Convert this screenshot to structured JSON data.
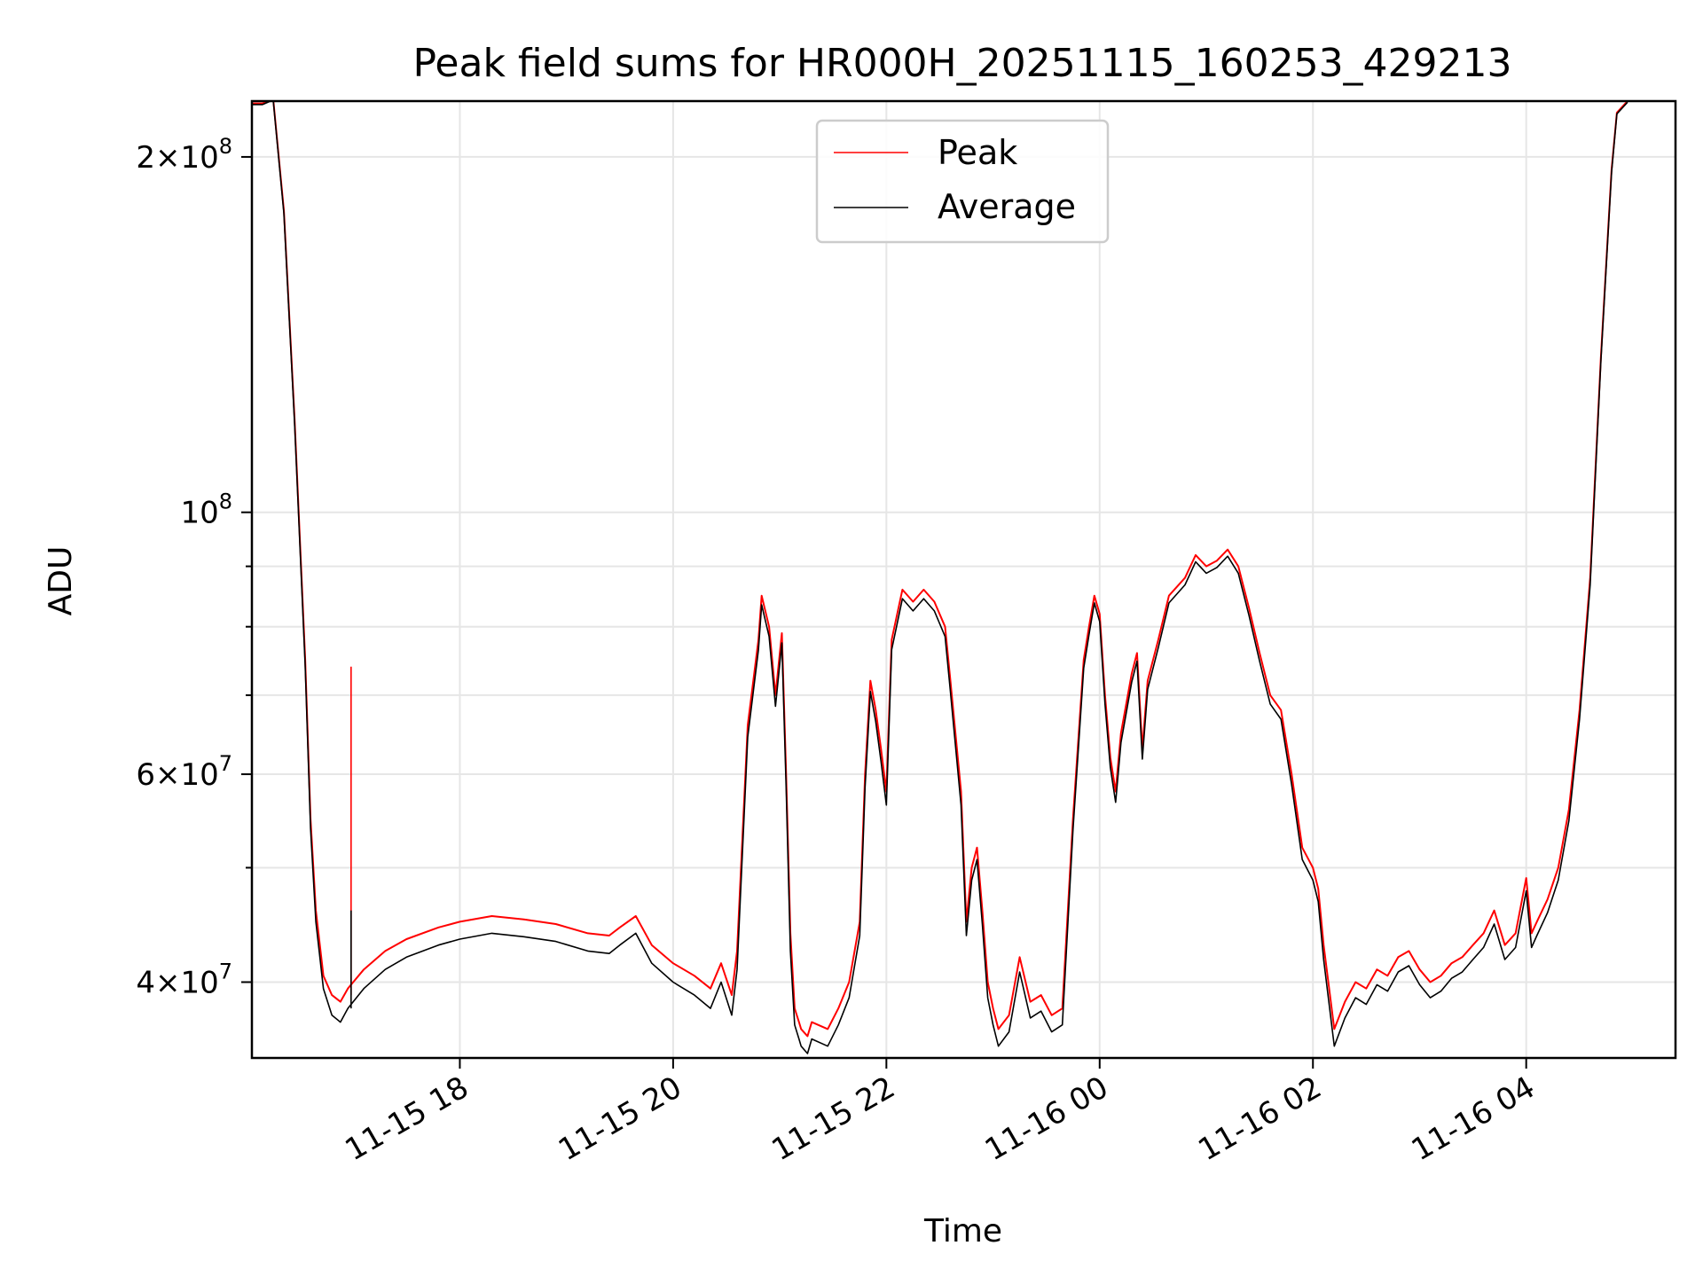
{
  "chart_data": {
    "type": "line",
    "title": "Peak field sums for HR000H_20251115_160253_429213",
    "xlabel": "Time",
    "ylabel": "ADU",
    "yscale": "log",
    "ylim": [
      34500000,
      223000000
    ],
    "xlim_hours": [
      16.05,
      29.4
    ],
    "grid": true,
    "legend_position": "top-center",
    "x_ticks": [
      {
        "hour": 18,
        "label": "11-15 18"
      },
      {
        "hour": 20,
        "label": "11-15 20"
      },
      {
        "hour": 22,
        "label": "11-15 22"
      },
      {
        "hour": 24,
        "label": "11-16 00"
      },
      {
        "hour": 26,
        "label": "11-16 02"
      },
      {
        "hour": 28,
        "label": "11-16 04"
      }
    ],
    "y_ticks": [
      {
        "value": 40000000,
        "mantissa": "4",
        "exponent": "7"
      },
      {
        "value": 60000000,
        "mantissa": "6",
        "exponent": "7"
      },
      {
        "value": 100000000,
        "mantissa": "",
        "exponent": "8"
      },
      {
        "value": 200000000,
        "mantissa": "2",
        "exponent": "8"
      }
    ],
    "y_minor_ticks": [
      50000000,
      70000000,
      80000000,
      90000000
    ],
    "x_hours": [
      16.05,
      16.15,
      16.25,
      16.35,
      16.45,
      16.55,
      16.6,
      16.65,
      16.72,
      16.8,
      16.88,
      16.95,
      17.0,
      17.1,
      17.3,
      17.5,
      17.8,
      18.0,
      18.3,
      18.6,
      18.9,
      19.2,
      19.4,
      19.5,
      19.65,
      19.8,
      20.0,
      20.2,
      20.35,
      20.45,
      20.55,
      20.6,
      20.7,
      20.8,
      20.83,
      20.9,
      20.96,
      21.02,
      21.06,
      21.1,
      21.14,
      21.18,
      21.2,
      21.26,
      21.3,
      21.45,
      21.55,
      21.65,
      21.75,
      21.8,
      21.85,
      21.9,
      21.95,
      22.0,
      22.05,
      22.15,
      22.25,
      22.35,
      22.45,
      22.55,
      22.6,
      22.7,
      22.75,
      22.8,
      22.85,
      22.9,
      22.95,
      23.0,
      23.05,
      23.15,
      23.25,
      23.35,
      23.45,
      23.55,
      23.65,
      23.75,
      23.85,
      23.9,
      23.95,
      24.0,
      24.05,
      24.1,
      24.15,
      24.2,
      24.3,
      24.35,
      24.4,
      24.45,
      24.55,
      24.65,
      24.8,
      24.9,
      25.0,
      25.1,
      25.2,
      25.3,
      25.4,
      25.5,
      25.6,
      25.7,
      25.8,
      25.9,
      26.0,
      26.05,
      26.1,
      26.2,
      26.3,
      26.4,
      26.5,
      26.6,
      26.7,
      26.8,
      26.9,
      27.0,
      27.1,
      27.2,
      27.3,
      27.4,
      27.5,
      27.6,
      27.7,
      27.8,
      27.9,
      28.0,
      28.05,
      28.1,
      28.2,
      28.3,
      28.4,
      28.5,
      28.6,
      28.7,
      28.8,
      28.85,
      28.95,
      29.05,
      29.15,
      29.25,
      29.4
    ],
    "series": [
      {
        "name": "Peak",
        "color": "#ff0000",
        "values": [
          222000000,
          222000000,
          224000000,
          180000000,
          120000000,
          75000000,
          55000000,
          46000000,
          40500000,
          39000000,
          38500000,
          39500000,
          40000000,
          41000000,
          42500000,
          43500000,
          44500000,
          45000000,
          45500000,
          45200000,
          44800000,
          44000000,
          43800000,
          44500000,
          45500000,
          43000000,
          41500000,
          40500000,
          39500000,
          41500000,
          39000000,
          42500000,
          66000000,
          78000000,
          85000000,
          80000000,
          70000000,
          79000000,
          60000000,
          44000000,
          38000000,
          37000000,
          36500000,
          36000000,
          37000000,
          36500000,
          38000000,
          40000000,
          45000000,
          60000000,
          72000000,
          68000000,
          63000000,
          58000000,
          78000000,
          86000000,
          84000000,
          86000000,
          84000000,
          80000000,
          72000000,
          58000000,
          45000000,
          50000000,
          52000000,
          46000000,
          40000000,
          38000000,
          36500000,
          37500000,
          42000000,
          38500000,
          39000000,
          37500000,
          38000000,
          55000000,
          75000000,
          80000000,
          85000000,
          82000000,
          70000000,
          62000000,
          58000000,
          65000000,
          73000000,
          76000000,
          63000000,
          72000000,
          78000000,
          85000000,
          88000000,
          92000000,
          90000000,
          91000000,
          93000000,
          90000000,
          83000000,
          76000000,
          70000000,
          68000000,
          60000000,
          52000000,
          50000000,
          48000000,
          43000000,
          36500000,
          38500000,
          40000000,
          39500000,
          41000000,
          40500000,
          42000000,
          42500000,
          41000000,
          40000000,
          40500000,
          41500000,
          42000000,
          43000000,
          44000000,
          46000000,
          43000000,
          44000000,
          49000000,
          44000000,
          45000000,
          47000000,
          50000000,
          56000000,
          68000000,
          88000000,
          135000000,
          195000000,
          218000000,
          223000000
        ]
      },
      {
        "name": "Average",
        "color": "#000000",
        "values": [
          221500000,
          221500000,
          223500000,
          179000000,
          119000000,
          74000000,
          54000000,
          45000000,
          39500000,
          37500000,
          37000000,
          38000000,
          38500000,
          39500000,
          41000000,
          42000000,
          43000000,
          43500000,
          44000000,
          43700000,
          43300000,
          42500000,
          42300000,
          43000000,
          44000000,
          41500000,
          40000000,
          39000000,
          38000000,
          40000000,
          37500000,
          41000000,
          64500000,
          76500000,
          83500000,
          78500000,
          68500000,
          77500000,
          58500000,
          42500000,
          36800000,
          35800000,
          35300000,
          34800000,
          35800000,
          35300000,
          36800000,
          38800000,
          43800000,
          58500000,
          70500000,
          66500000,
          61500000,
          56500000,
          76500000,
          84500000,
          82500000,
          84500000,
          82500000,
          78500000,
          70500000,
          56500000,
          43800000,
          48800000,
          50800000,
          44800000,
          38800000,
          36800000,
          35300000,
          36300000,
          40800000,
          37300000,
          37800000,
          36300000,
          36800000,
          53800000,
          73800000,
          78800000,
          83800000,
          80800000,
          68800000,
          60800000,
          56800000,
          63800000,
          71800000,
          74800000,
          61800000,
          70800000,
          76800000,
          83800000,
          86800000,
          90800000,
          88800000,
          89800000,
          91800000,
          88800000,
          81800000,
          74800000,
          68800000,
          66800000,
          58800000,
          50800000,
          48800000,
          46800000,
          41800000,
          35300000,
          37300000,
          38800000,
          38300000,
          39800000,
          39300000,
          40800000,
          41300000,
          39800000,
          38800000,
          39300000,
          40300000,
          40800000,
          41800000,
          42800000,
          44800000,
          41800000,
          42800000,
          47800000,
          42800000,
          43800000,
          45800000,
          48800000,
          54800000,
          66800000,
          86800000,
          134000000,
          194000000,
          217500000,
          222500000
        ]
      }
    ],
    "annotations": [
      {
        "hour": 16.98,
        "peak_value": 74000000,
        "average_value": 46000000,
        "label": ""
      }
    ]
  }
}
